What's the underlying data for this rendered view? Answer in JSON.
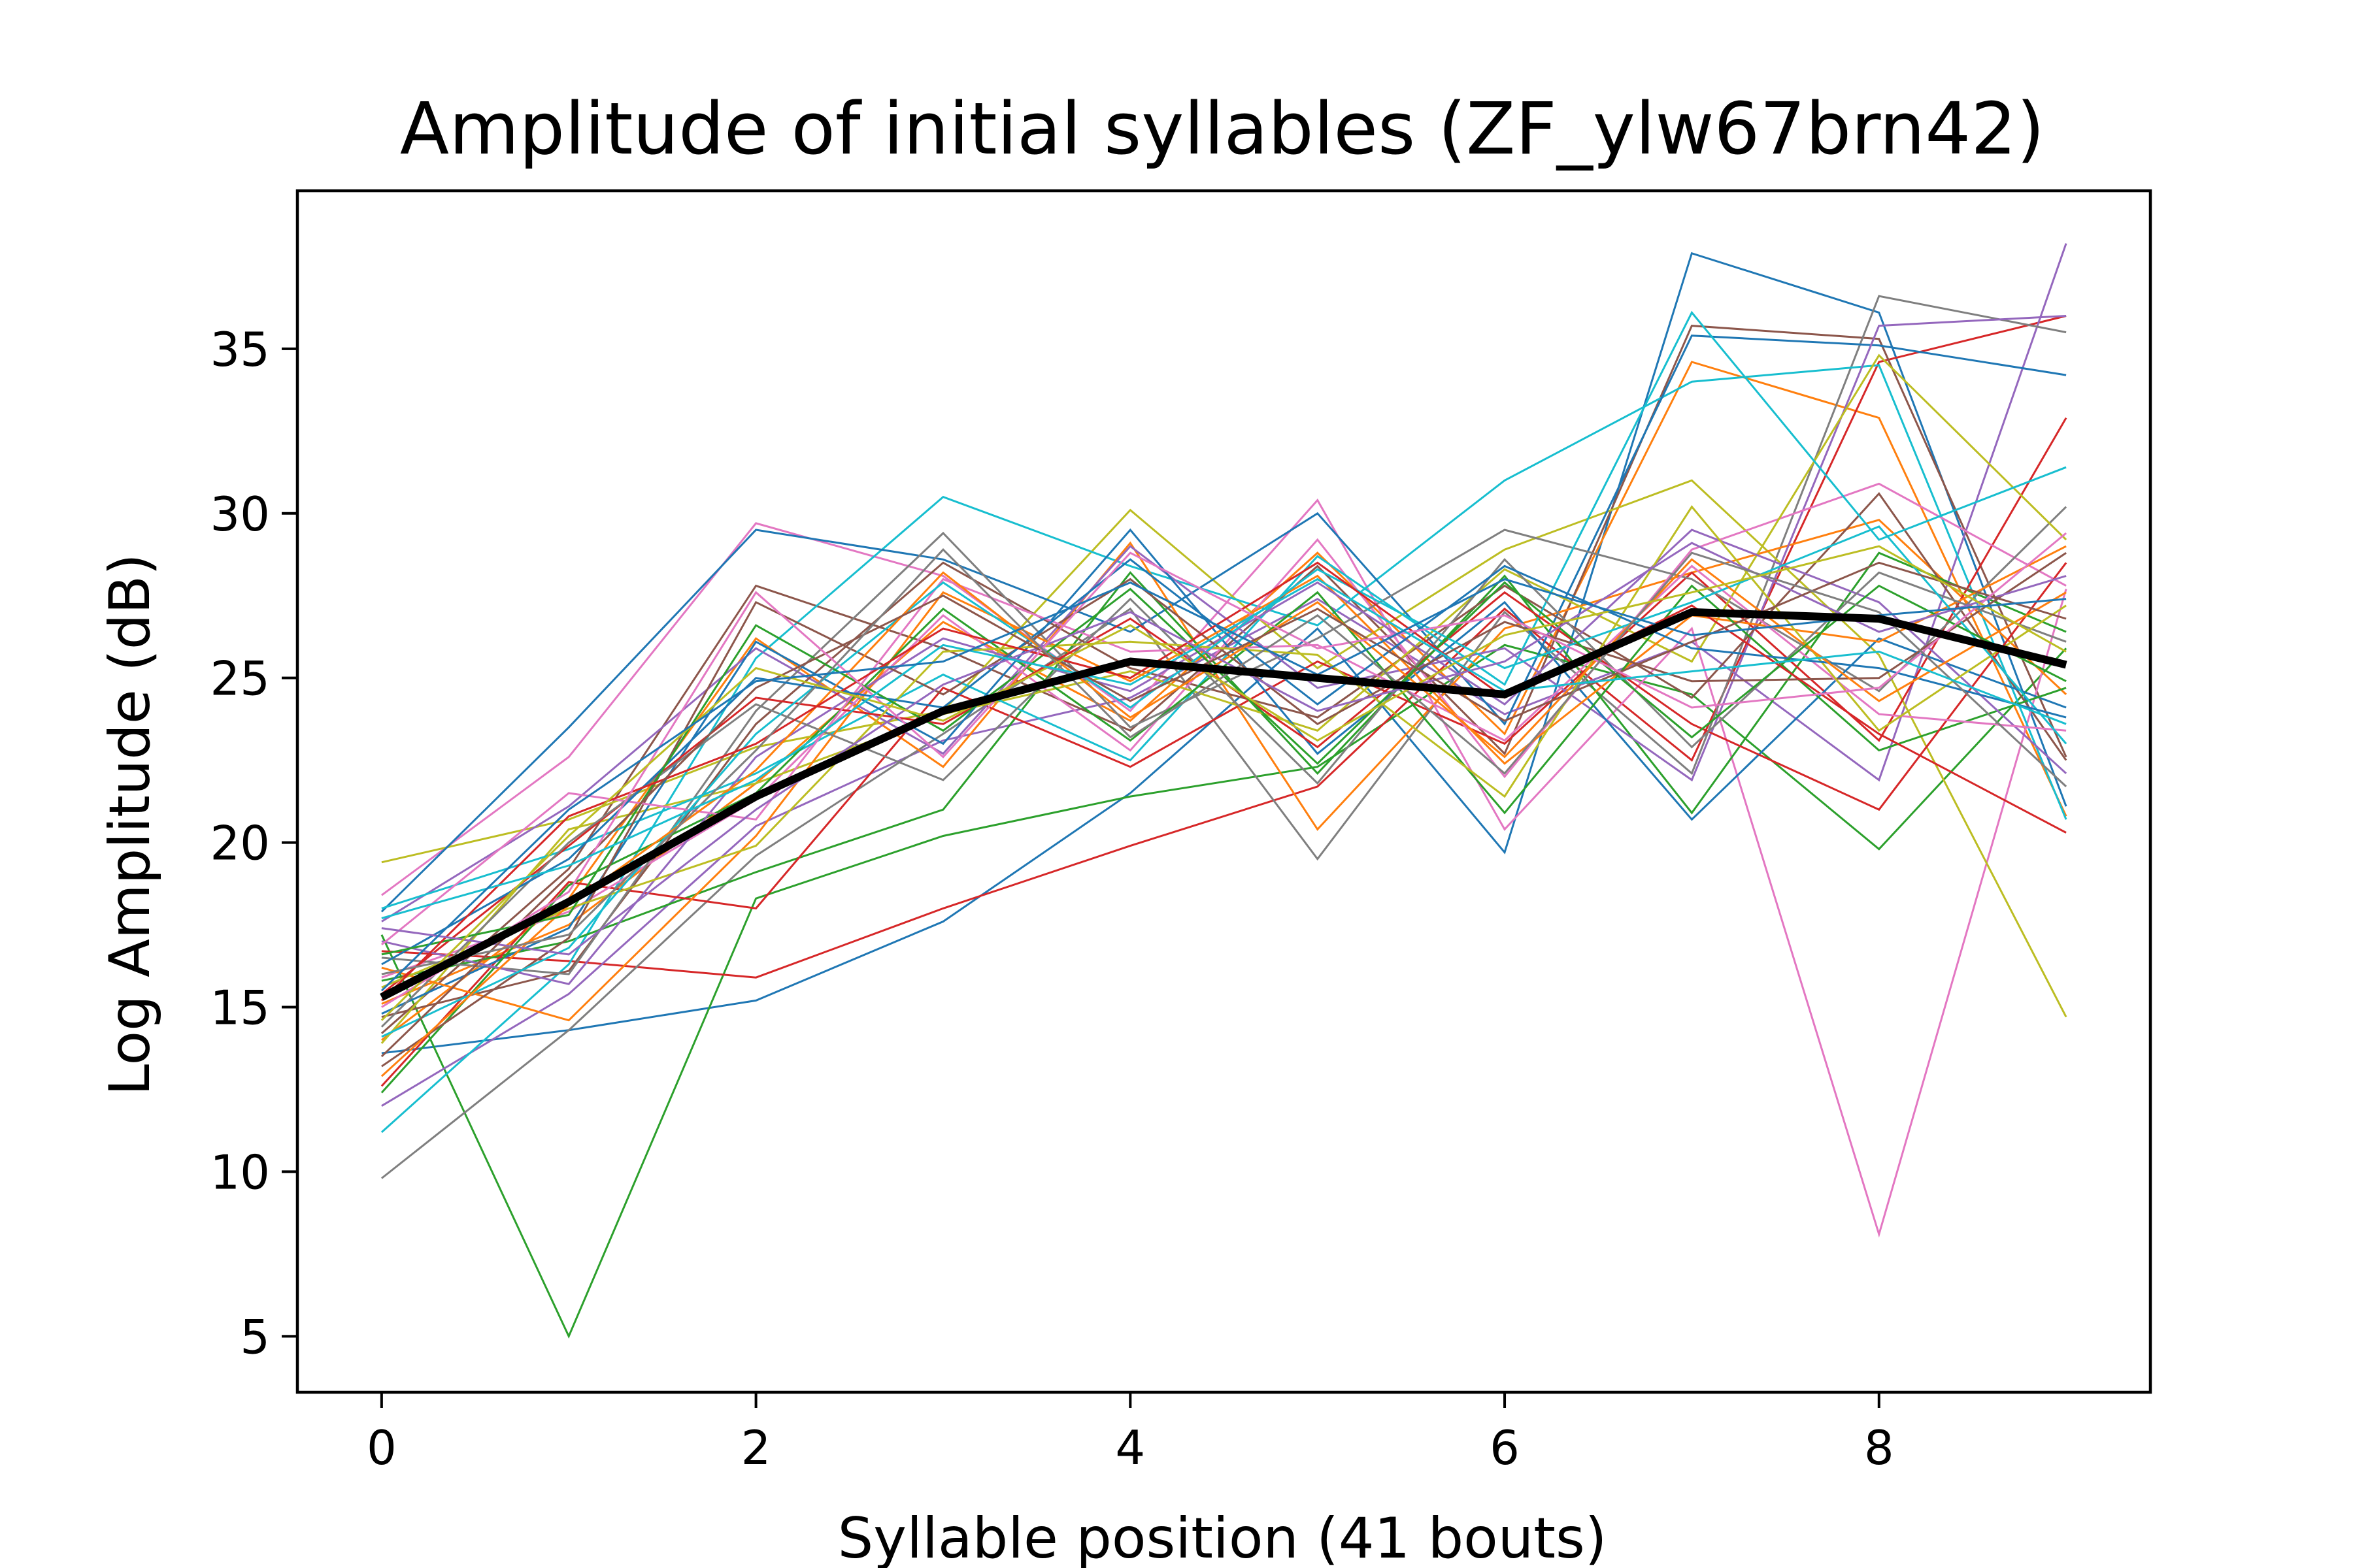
{
  "chart_data": {
    "type": "line",
    "title": "Amplitude of initial syllables (ZF_ylw67brn42)",
    "xlabel": "Syllable position (41 bouts)",
    "ylabel": "Log Amplitude (dB)",
    "xlim": [
      -0.45,
      9.45
    ],
    "ylim": [
      3.3,
      39.8
    ],
    "xticks": [
      0,
      2,
      4,
      6,
      8
    ],
    "yticks": [
      5,
      10,
      15,
      20,
      25,
      30,
      35
    ],
    "grid": false,
    "legend": "none",
    "x": [
      0,
      1,
      2,
      3,
      4,
      5,
      6,
      7,
      8,
      9
    ],
    "mean_series": {
      "color": "#000000",
      "values": [
        15.3,
        18.2,
        21.4,
        24.0,
        25.5,
        25.0,
        24.5,
        27.0,
        26.8,
        25.4
      ]
    },
    "series": [
      {
        "color": "#1f77b4",
        "values": [
          13.6,
          14.3,
          15.2,
          17.6,
          21.5,
          26.5,
          19.7,
          37.9,
          36.1,
          21.1
        ]
      },
      {
        "color": "#ff7f0e",
        "values": [
          15.1,
          17.5,
          21.8,
          26.7,
          23.7,
          28.8,
          23.3,
          34.6,
          32.9,
          20.8
        ]
      },
      {
        "color": "#2ca02c",
        "values": [
          17.2,
          5.0,
          18.3,
          20.2,
          21.4,
          22.3,
          26.0,
          24.5,
          19.8,
          25.9
        ]
      },
      {
        "color": "#d62728",
        "values": [
          16.7,
          16.4,
          15.9,
          18.0,
          19.9,
          21.7,
          27.1,
          22.5,
          34.6,
          36.0
        ]
      },
      {
        "color": "#9467bd",
        "values": [
          12.0,
          15.4,
          20.5,
          23.1,
          24.4,
          27.4,
          23.9,
          26.1,
          21.9,
          38.2
        ]
      },
      {
        "color": "#8c564b",
        "values": [
          14.2,
          19.2,
          27.8,
          25.9,
          23.4,
          28.4,
          22.7,
          35.7,
          35.3,
          22.6
        ]
      },
      {
        "color": "#e377c2",
        "values": [
          18.4,
          22.6,
          29.7,
          28.1,
          24.0,
          30.4,
          20.4,
          26.5,
          8.1,
          27.7
        ]
      },
      {
        "color": "#7f7f7f",
        "values": [
          9.8,
          14.3,
          19.6,
          23.3,
          27.1,
          19.5,
          27.0,
          22.1,
          36.6,
          35.5
        ]
      },
      {
        "color": "#bcbd22",
        "values": [
          19.4,
          20.7,
          22.9,
          24.0,
          30.1,
          25.3,
          28.9,
          31.0,
          25.7,
          14.7
        ]
      },
      {
        "color": "#17becf",
        "values": [
          11.2,
          16.3,
          25.6,
          30.5,
          28.4,
          26.6,
          31.0,
          34.0,
          34.5,
          20.7
        ]
      },
      {
        "color": "#1f77b4",
        "values": [
          17.9,
          23.5,
          29.5,
          28.6,
          26.4,
          30.0,
          23.6,
          35.4,
          35.1,
          34.2
        ]
      },
      {
        "color": "#ff7f0e",
        "values": [
          14.0,
          18.3,
          26.2,
          22.3,
          29.1,
          20.4,
          26.5,
          28.2,
          29.8,
          24.5
        ]
      },
      {
        "color": "#2ca02c",
        "values": [
          15.8,
          17.0,
          19.1,
          21.0,
          28.2,
          22.1,
          28.1,
          20.9,
          28.8,
          26.4
        ]
      },
      {
        "color": "#d62728",
        "values": [
          12.6,
          18.8,
          18.0,
          24.7,
          22.3,
          25.5,
          23.0,
          28.2,
          23.1,
          32.9
        ]
      },
      {
        "color": "#9467bd",
        "values": [
          17.6,
          21.1,
          25.9,
          22.7,
          29.0,
          24.7,
          25.9,
          21.9,
          35.7,
          36.0
        ]
      },
      {
        "color": "#8c564b",
        "values": [
          14.7,
          16.1,
          23.6,
          28.5,
          25.3,
          23.8,
          27.8,
          24.4,
          30.6,
          22.5
        ]
      },
      {
        "color": "#e377c2",
        "values": [
          15.9,
          17.9,
          21.3,
          26.9,
          22.8,
          29.2,
          22.0,
          28.9,
          30.9,
          27.8
        ]
      },
      {
        "color": "#7f7f7f",
        "values": [
          16.5,
          16.0,
          24.0,
          29.4,
          23.5,
          26.2,
          29.5,
          28.0,
          24.6,
          30.2
        ]
      },
      {
        "color": "#bcbd22",
        "values": [
          13.9,
          20.4,
          21.8,
          23.9,
          25.2,
          23.4,
          28.3,
          25.5,
          34.8,
          29.2
        ]
      },
      {
        "color": "#17becf",
        "values": [
          18.0,
          19.8,
          22.1,
          25.1,
          22.5,
          28.7,
          24.8,
          36.1,
          29.2,
          31.4
        ]
      },
      {
        "color": "#1f77b4",
        "values": [
          14.8,
          17.4,
          26.1,
          23.0,
          29.5,
          22.7,
          27.3,
          20.7,
          26.2,
          24.1
        ]
      },
      {
        "color": "#ff7f0e",
        "values": [
          16.2,
          14.6,
          20.2,
          27.6,
          24.9,
          28.1,
          22.4,
          26.9,
          26.1,
          29.0
        ]
      },
      {
        "color": "#2ca02c",
        "values": [
          12.4,
          18.7,
          21.5,
          27.1,
          23.1,
          27.6,
          20.9,
          27.8,
          22.8,
          24.7
        ]
      },
      {
        "color": "#d62728",
        "values": [
          15.4,
          19.9,
          24.4,
          23.6,
          26.8,
          22.9,
          27.6,
          23.6,
          21.0,
          28.5
        ]
      },
      {
        "color": "#9467bd",
        "values": [
          17.0,
          15.7,
          22.6,
          26.2,
          24.6,
          27.9,
          24.2,
          29.5,
          27.3,
          22.1
        ]
      },
      {
        "color": "#8c564b",
        "values": [
          13.2,
          17.1,
          27.3,
          24.5,
          28.0,
          23.6,
          26.7,
          24.9,
          25.0,
          28.8
        ]
      },
      {
        "color": "#e377c2",
        "values": [
          16.9,
          21.5,
          20.7,
          28.0,
          25.8,
          26.0,
          23.1,
          28.4,
          23.9,
          23.4
        ]
      },
      {
        "color": "#7f7f7f",
        "values": [
          14.4,
          20.0,
          24.2,
          21.9,
          27.4,
          21.8,
          28.6,
          22.9,
          28.2,
          26.1
        ]
      },
      {
        "color": "#bcbd22",
        "values": [
          15.6,
          18.0,
          19.9,
          25.8,
          26.1,
          25.7,
          21.4,
          30.2,
          23.4,
          27.2
        ]
      },
      {
        "color": "#17becf",
        "values": [
          14.1,
          16.8,
          23.3,
          27.9,
          24.1,
          28.3,
          25.3,
          27.3,
          29.6,
          23.0
        ]
      },
      {
        "color": "#1f77b4",
        "values": [
          16.3,
          19.5,
          25.0,
          24.1,
          28.6,
          24.2,
          28.4,
          25.9,
          25.3,
          23.8
        ]
      },
      {
        "color": "#ff7f0e",
        "values": [
          12.9,
          18.1,
          22.2,
          28.2,
          23.8,
          27.3,
          22.6,
          28.6,
          24.3,
          27.6
        ]
      },
      {
        "color": "#2ca02c",
        "values": [
          16.6,
          17.8,
          26.6,
          23.4,
          27.7,
          22.4,
          27.9,
          23.2,
          27.8,
          24.9
        ]
      },
      {
        "color": "#d62728",
        "values": [
          15.2,
          20.8,
          23.0,
          26.5,
          25.0,
          28.5,
          24.4,
          27.2,
          23.3,
          20.3
        ]
      },
      {
        "color": "#9467bd",
        "values": [
          17.4,
          16.6,
          21.0,
          24.8,
          27.0,
          24.0,
          25.5,
          29.1,
          26.4,
          28.1
        ]
      },
      {
        "color": "#8c564b",
        "values": [
          13.5,
          19.0,
          24.7,
          27.5,
          24.3,
          27.1,
          23.7,
          26.1,
          28.5,
          26.8
        ]
      },
      {
        "color": "#e377c2",
        "values": [
          15.0,
          18.5,
          27.6,
          22.6,
          28.8,
          25.9,
          26.9,
          24.1,
          24.7,
          29.4
        ]
      },
      {
        "color": "#7f7f7f",
        "values": [
          16.0,
          17.2,
          22.8,
          28.9,
          23.2,
          26.9,
          22.1,
          28.8,
          27.0,
          21.7
        ]
      },
      {
        "color": "#bcbd22",
        "values": [
          14.6,
          20.2,
          25.3,
          23.7,
          26.6,
          23.1,
          26.3,
          27.6,
          29.0,
          25.8
        ]
      },
      {
        "color": "#17becf",
        "values": [
          17.7,
          19.3,
          21.9,
          26.0,
          24.8,
          28.0,
          24.6,
          25.2,
          25.8,
          23.6
        ]
      },
      {
        "color": "#1f77b4",
        "values": [
          15.5,
          21.0,
          24.9,
          25.5,
          27.9,
          25.1,
          28.0,
          26.3,
          26.9,
          27.4
        ]
      }
    ]
  }
}
